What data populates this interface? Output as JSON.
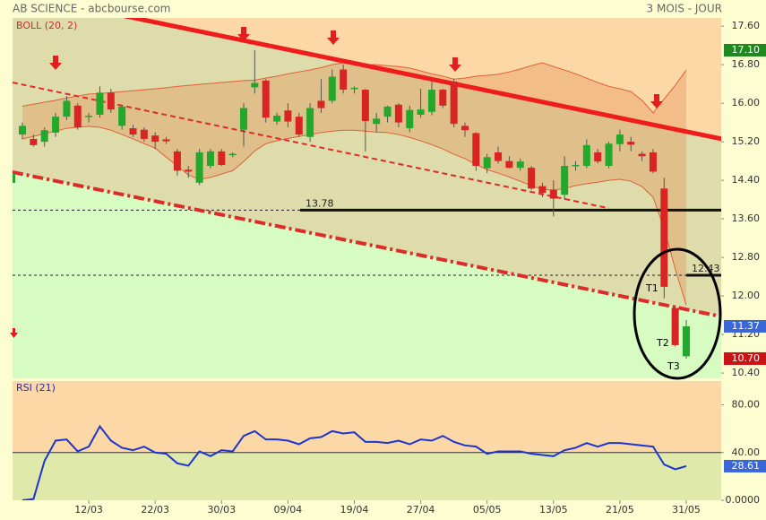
{
  "chart_data": [
    {
      "type": "candlestick",
      "title": "AB SCIENCE - abcbourse.com",
      "subtitle": "3 MOIS - JOUR",
      "categories": [
        null,
        null,
        null,
        null,
        null,
        null,
        "12/03",
        null,
        null,
        null,
        null,
        null,
        "22/03",
        null,
        null,
        null,
        null,
        null,
        "30/03",
        null,
        null,
        null,
        null,
        null,
        "09/04",
        null,
        null,
        null,
        null,
        null,
        "19/04",
        null,
        null,
        null,
        null,
        null,
        "27/04",
        null,
        null,
        null,
        null,
        null,
        "05/05",
        null,
        null,
        null,
        null,
        null,
        "13/05",
        null,
        null,
        null,
        null,
        null,
        "21/05",
        null,
        null,
        null,
        null,
        null,
        "31/05"
      ],
      "open": [
        15.35,
        15.26,
        15.2,
        15.39,
        15.72,
        15.95,
        15.72,
        15.76,
        16.22,
        15.53,
        15.48,
        15.45,
        15.33,
        15.25,
        15.0,
        14.62,
        14.35,
        14.7,
        15.0,
        14.92,
        15.45,
        16.33,
        16.47,
        15.62,
        15.85,
        15.72,
        15.3,
        16.05,
        16.05,
        16.7,
        16.3,
        16.28,
        15.57,
        15.72,
        15.97,
        15.48,
        15.76,
        15.82,
        16.28,
        16.45,
        15.53,
        15.38,
        14.65,
        14.98,
        14.8,
        14.66,
        14.66,
        14.28,
        14.2,
        14.1,
        14.7,
        14.7,
        14.98,
        14.7,
        15.15,
        15.2,
        14.95,
        14.98,
        14.23,
        11.75,
        10.75
      ],
      "high": [
        15.6,
        15.35,
        15.5,
        15.8,
        16.15,
        16.0,
        15.8,
        16.35,
        16.3,
        15.95,
        15.55,
        15.5,
        15.4,
        15.3,
        15.05,
        14.7,
        15.05,
        15.05,
        15.05,
        14.98,
        16.0,
        17.1,
        16.5,
        15.8,
        16.0,
        15.8,
        16.0,
        16.5,
        16.7,
        16.8,
        16.35,
        16.3,
        15.8,
        15.95,
        16.0,
        15.95,
        16.3,
        16.45,
        16.3,
        16.5,
        15.6,
        15.4,
        14.95,
        15.1,
        14.9,
        14.85,
        14.7,
        14.35,
        14.4,
        14.9,
        14.8,
        15.25,
        15.05,
        15.2,
        15.45,
        15.3,
        15.0,
        15.05,
        14.45,
        11.8,
        11.5
      ],
      "low": [
        15.25,
        15.1,
        15.1,
        15.3,
        15.65,
        15.45,
        15.6,
        15.7,
        15.8,
        15.45,
        15.3,
        15.2,
        15.05,
        15.15,
        14.5,
        14.45,
        14.3,
        14.65,
        14.7,
        14.88,
        15.1,
        16.2,
        15.6,
        15.55,
        15.5,
        15.3,
        15.2,
        15.8,
        16.0,
        16.2,
        16.2,
        15.0,
        15.4,
        15.6,
        15.5,
        15.4,
        15.7,
        15.75,
        15.9,
        15.5,
        15.3,
        14.6,
        14.55,
        14.75,
        14.65,
        14.6,
        14.2,
        14.05,
        13.65,
        14.0,
        14.6,
        14.65,
        14.75,
        14.65,
        15.0,
        15.0,
        14.8,
        14.55,
        11.95,
        10.95,
        10.7
      ],
      "close": [
        15.53,
        15.13,
        15.44,
        15.72,
        16.05,
        15.5,
        15.74,
        16.22,
        15.87,
        15.93,
        15.35,
        15.26,
        15.2,
        15.21,
        14.6,
        14.58,
        14.98,
        15.0,
        14.72,
        14.95,
        15.9,
        16.42,
        15.7,
        15.74,
        15.62,
        15.35,
        15.9,
        15.9,
        16.55,
        16.28,
        16.32,
        15.63,
        15.68,
        15.93,
        15.6,
        15.86,
        15.87,
        16.28,
        15.95,
        15.57,
        15.44,
        14.7,
        14.88,
        14.8,
        14.66,
        14.79,
        14.23,
        14.14,
        14.02,
        14.7,
        14.72,
        15.13,
        14.79,
        15.16,
        15.35,
        15.14,
        14.9,
        14.58,
        12.19,
        10.98,
        11.37
      ],
      "up_color": "#22a82a",
      "down_color": "#d92424",
      "ylim": [
        10.29,
        17.77
      ],
      "yticks": [
        {
          "value": 17.6,
          "label": "17.60"
        },
        {
          "value": 16.8,
          "label": "16.80"
        },
        {
          "value": 16.0,
          "label": "16.00"
        },
        {
          "value": 15.2,
          "label": "15.20"
        },
        {
          "value": 14.4,
          "label": "14.40"
        },
        {
          "value": 13.6,
          "label": "13.60"
        },
        {
          "value": 12.8,
          "label": "12.80"
        },
        {
          "value": 12.0,
          "label": "12.00"
        },
        {
          "value": 11.2,
          "label": "11.20"
        },
        {
          "value": 10.4,
          "label": "10.40"
        }
      ],
      "bands": {
        "label": "BOLL (20, 2)",
        "color": "#e0603a",
        "upper": [
          15.94,
          15.98,
          16.02,
          16.06,
          16.11,
          16.15,
          16.19,
          16.2,
          16.22,
          16.24,
          16.26,
          16.28,
          16.3,
          16.32,
          16.35,
          16.37,
          16.39,
          16.41,
          16.43,
          16.45,
          16.47,
          16.48,
          16.52,
          16.56,
          16.61,
          16.65,
          16.69,
          16.74,
          16.8,
          16.84,
          16.82,
          16.8,
          16.8,
          16.78,
          16.76,
          16.73,
          16.67,
          16.61,
          16.56,
          16.5,
          16.52,
          16.56,
          16.58,
          16.6,
          16.65,
          16.71,
          16.78,
          16.84,
          16.76,
          16.69,
          16.61,
          16.52,
          16.43,
          16.35,
          16.3,
          16.24,
          16.06,
          15.8,
          16.09,
          16.37,
          16.69
        ],
        "lower": [
          15.26,
          15.31,
          15.37,
          15.42,
          15.48,
          15.5,
          15.52,
          15.5,
          15.44,
          15.35,
          15.26,
          15.16,
          15.07,
          14.88,
          14.7,
          14.51,
          14.42,
          14.46,
          14.53,
          14.6,
          14.79,
          15.01,
          15.16,
          15.22,
          15.27,
          15.31,
          15.35,
          15.39,
          15.42,
          15.44,
          15.44,
          15.42,
          15.4,
          15.39,
          15.35,
          15.29,
          15.22,
          15.14,
          15.05,
          14.94,
          14.85,
          14.73,
          14.62,
          14.55,
          14.47,
          14.38,
          14.29,
          14.21,
          14.2,
          14.23,
          14.29,
          14.33,
          14.36,
          14.4,
          14.42,
          14.38,
          14.27,
          14.05,
          13.4,
          12.56,
          11.81
        ]
      },
      "trendlines": [
        {
          "x": [
            -0.9,
            63.2
          ],
          "y": [
            18.29,
            15.26
          ],
          "style": "solid",
          "color": "#ee1c1c"
        },
        {
          "x": [
            -0.9,
            53.0
          ],
          "y": [
            16.43,
            13.82
          ],
          "style": "dashed",
          "color": "#dd2a2a"
        },
        {
          "x": [
            -0.9,
            62.8
          ],
          "y": [
            14.57,
            11.59
          ],
          "style": "dashdot",
          "color": "#dd2a2a"
        }
      ],
      "levels": [
        {
          "value": 13.78,
          "label": "13.78",
          "x_start": 25.1
        },
        {
          "value": 12.43,
          "label": "12.43",
          "x_start": 60.0
        }
      ],
      "markers": [
        {
          "value": 17.1,
          "label": "17.10",
          "color": "#1e8a1e"
        },
        {
          "value": 11.37,
          "label": "11.37",
          "color": "#3a66d8"
        },
        {
          "value": 10.7,
          "label": "10.70",
          "color": "#c81414"
        }
      ],
      "annotations": [
        "T1",
        "T2",
        "T3"
      ]
    },
    {
      "type": "line",
      "title": "RSI (21)",
      "color": "#1c34d0",
      "values": [
        0,
        1,
        33,
        50,
        51,
        41,
        45,
        62,
        50,
        44,
        42,
        45,
        40,
        39,
        31,
        29,
        41,
        37,
        42,
        41,
        54,
        58,
        51,
        51,
        50,
        47,
        52,
        53,
        58,
        56,
        57,
        49,
        49,
        48,
        50,
        47,
        51,
        50,
        54,
        49,
        46,
        45,
        39,
        41,
        41,
        41,
        39,
        38,
        37,
        42,
        44,
        48,
        45,
        48,
        48,
        47,
        46,
        45,
        30,
        26,
        28.61
      ],
      "ylim": [
        0,
        100
      ],
      "yticks": [
        {
          "value": 80,
          "label": "80.00"
        },
        {
          "value": 40,
          "label": "40.00"
        },
        {
          "value": 0,
          "label": "0.0000"
        }
      ],
      "markers": [
        {
          "value": 28.61,
          "label": "28.61",
          "color": "#3a66d8"
        }
      ]
    }
  ]
}
